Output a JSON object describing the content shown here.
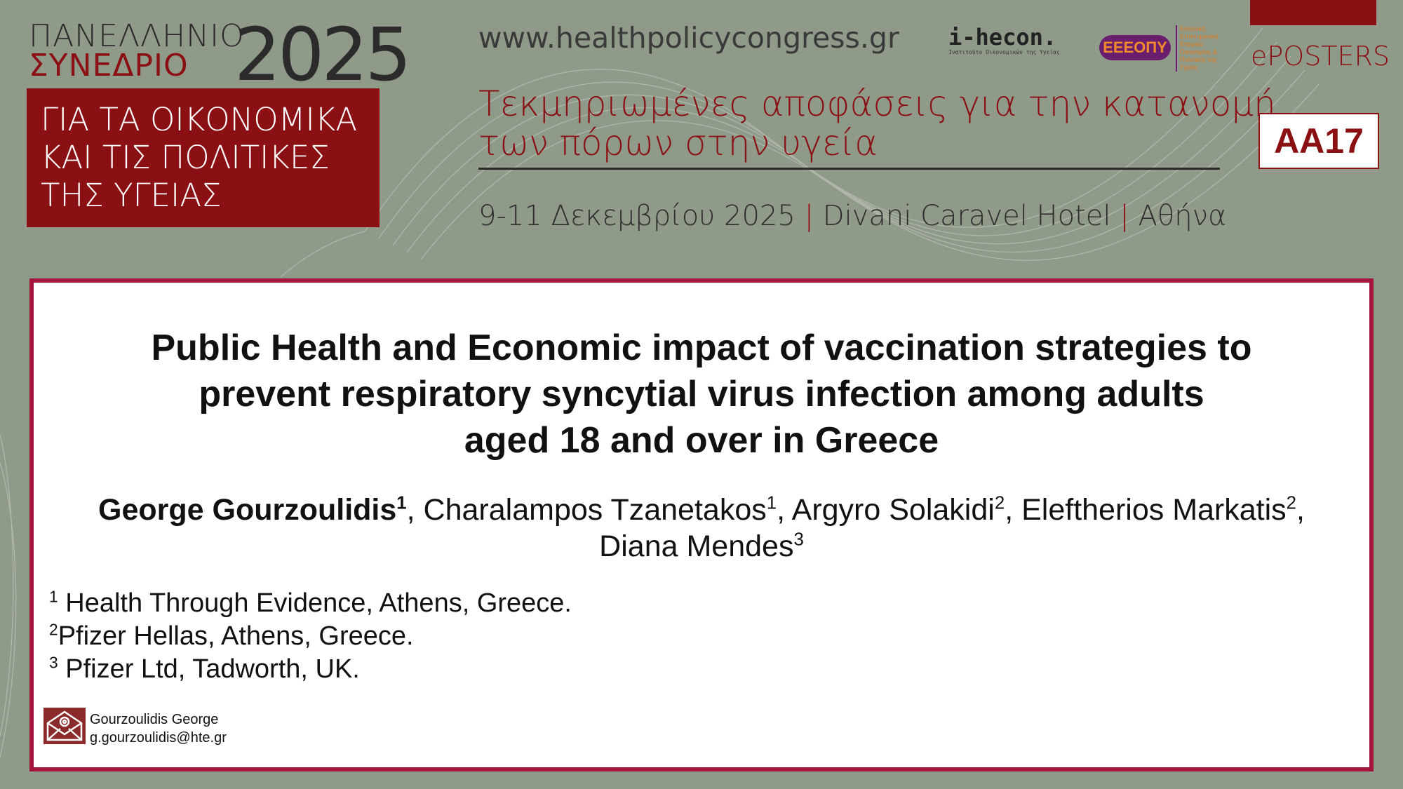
{
  "header": {
    "logo_line1": "ΠΑΝΕΛΛΗΝΙΟ",
    "logo_line2": "ΣΥΝΕΔΡΙΟ",
    "logo_year": "2025",
    "congress_theme": [
      "ΓΙΑ ΤΑ ΟΙΚΟΝΟΜΙΚΑ",
      "ΚΑΙ ΤΙΣ ΠΟΛΙΤΙΚΕΣ",
      "ΤΗΣ ΥΓΕΙΑΣ"
    ],
    "url": "www.healthpolicycongress.gr",
    "ihecon_logo": {
      "name": "i-hecon.",
      "tagline": "Ινστιτούτο Οικονομικών της Υγείας"
    },
    "eeeopy_logo": {
      "name": "ΕΕΕΟΠΥ",
      "tagline": "Ελληνική Επιστημονική Εταιρεία Οικονομίας & Πολιτικής της Υγείας"
    },
    "section_label": "ePOSTERS",
    "subtitle_lines": [
      "Τεκμηριωμένες αποφάσεις για την κατανομή",
      "των πόρων στην υγεία"
    ],
    "date": "9-11 Δεκεμβρίου 2025",
    "venue": "Divani Caravel Hotel",
    "city": "Αθήνα",
    "separator": "|",
    "poster_code": "AA17",
    "accent_color": "#8b1014",
    "background_color": "#8f9a89"
  },
  "poster": {
    "title_lines": [
      "Public Health and Economic impact of vaccination strategies to",
      "prevent respiratory syncytial virus infection among adults",
      "aged 18 and over in Greece"
    ],
    "authors": [
      {
        "name": "George Gourzoulidis",
        "sup": "1",
        "sep": ", "
      },
      {
        "name": "Charalampos Tzanetakos",
        "sup": "1",
        "sep": ", "
      },
      {
        "name": "Argyro Solakidi",
        "sup": "2",
        "sep": ", "
      },
      {
        "name": "Eleftherios Markatis",
        "sup": "2",
        "sep": ","
      },
      {
        "name": "Diana Mendes",
        "sup": "3",
        "sep": ""
      }
    ],
    "affiliations": [
      {
        "num": "1",
        "text": " Health Through Evidence, Athens, Greece."
      },
      {
        "num": "2",
        "text": "Pfizer Hellas, Athens, Greece."
      },
      {
        "num": "3",
        "text": " Pfizer Ltd, Tadworth, UK."
      }
    ],
    "contact": {
      "icon": "email-envelope-icon",
      "name": "Gourzoulidis George",
      "email": "g.gourzoulidis@hte.gr"
    }
  }
}
